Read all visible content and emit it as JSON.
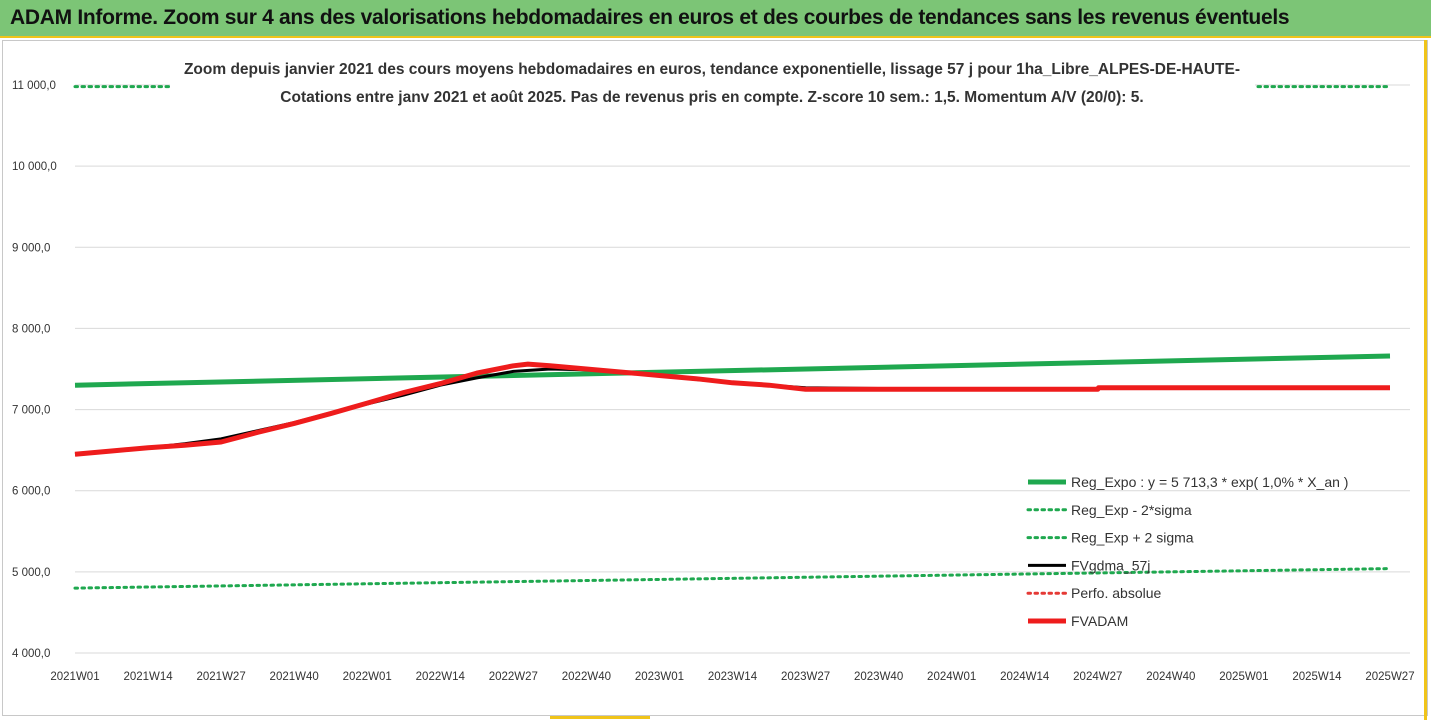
{
  "banner": {
    "title": "ADAM Informe. Zoom sur 4 ans des valorisations hebdomadaires en euros et des courbes de tendances sans les revenus éventuels"
  },
  "chart_data": {
    "type": "line",
    "title": "Zoom depuis janvier 2021 des cours moyens hebdomadaires en euros, tendance exponentielle, lissage 57 j pour 1ha_Libre_ALPES-DE-HAUTE-",
    "subtitle": "Cotations entre janv 2021 et août 2025.  Pas de revenus pris en compte. Z-score 10 sem.: 1,5. Momentum A/V (20/0): 5.",
    "xlabel": "",
    "ylabel": "",
    "ylim": [
      4000,
      11000
    ],
    "yticks": [
      "11 000,0",
      "10 000,0",
      "9 000,0",
      "8 000,0",
      "7 000,0",
      "6 000,0",
      "5 000,0",
      "4 000,0"
    ],
    "ytick_values": [
      11000,
      10000,
      9000,
      8000,
      7000,
      6000,
      5000,
      4000
    ],
    "xtick_labels": [
      "2021W01",
      "2021W14",
      "2021W27",
      "2021W40",
      "2022W01",
      "2022W14",
      "2022W27",
      "2022W40",
      "2023W01",
      "2023W14",
      "2023W27",
      "2023W40",
      "2024W01",
      "2024W14",
      "2024W27",
      "2024W40",
      "2025W01",
      "2025W14",
      "2025W27"
    ],
    "grid": "horizontal",
    "legend_position": "bottom-right",
    "series": [
      {
        "name": "Reg_Expo : y = 5 713,3 * exp( 1,0% *  X_an )",
        "color": "#1fa84f",
        "style": "solid-thick",
        "points": [
          [
            0,
            7300
          ],
          [
            18,
            7660
          ]
        ]
      },
      {
        "name": "Reg_Exp - 2*sigma",
        "color": "#1fa84f",
        "style": "dotted",
        "points": [
          [
            0,
            4800
          ],
          [
            18,
            5040
          ]
        ]
      },
      {
        "name": "Reg_Exp + 2 sigma",
        "color": "#1fa84f",
        "style": "dotted",
        "points": [
          [
            0,
            10980
          ],
          [
            18,
            10980
          ]
        ]
      },
      {
        "name": "FVgdma_57j",
        "color": "#000000",
        "style": "solid",
        "points": [
          [
            0,
            6450
          ],
          [
            0.5,
            6490
          ],
          [
            1,
            6530
          ],
          [
            1.5,
            6580
          ],
          [
            2,
            6640
          ],
          [
            2.5,
            6740
          ],
          [
            3,
            6840
          ],
          [
            3.5,
            6960
          ],
          [
            4,
            7070
          ],
          [
            4.5,
            7180
          ],
          [
            5,
            7300
          ],
          [
            5.5,
            7390
          ],
          [
            6,
            7470
          ],
          [
            6.5,
            7500
          ],
          [
            7,
            7490
          ],
          [
            7.5,
            7460
          ],
          [
            8,
            7420
          ],
          [
            8.5,
            7370
          ],
          [
            9,
            7330
          ],
          [
            9.5,
            7300
          ],
          [
            10,
            7270
          ],
          [
            11,
            7260
          ],
          [
            13,
            7260
          ],
          [
            14,
            7260
          ],
          [
            18,
            7260
          ]
        ]
      },
      {
        "name": "Perfo. absolue",
        "color": "#e53935",
        "style": "dotted",
        "points": []
      },
      {
        "name": "FVADAM",
        "color": "#ee1c1c",
        "style": "solid-thick",
        "points": [
          [
            0,
            6450
          ],
          [
            0.5,
            6490
          ],
          [
            1,
            6530
          ],
          [
            1.5,
            6560
          ],
          [
            2,
            6600
          ],
          [
            2.5,
            6720
          ],
          [
            3,
            6830
          ],
          [
            3.5,
            6950
          ],
          [
            4,
            7080
          ],
          [
            4.5,
            7210
          ],
          [
            5,
            7320
          ],
          [
            5.5,
            7450
          ],
          [
            6,
            7540
          ],
          [
            6.2,
            7560
          ],
          [
            6.5,
            7540
          ],
          [
            7,
            7500
          ],
          [
            7.5,
            7460
          ],
          [
            8,
            7420
          ],
          [
            8.5,
            7380
          ],
          [
            9,
            7330
          ],
          [
            9.5,
            7300
          ],
          [
            10,
            7250
          ],
          [
            11,
            7250
          ],
          [
            14,
            7250
          ],
          [
            14.01,
            7270
          ],
          [
            18,
            7270
          ]
        ]
      }
    ]
  }
}
